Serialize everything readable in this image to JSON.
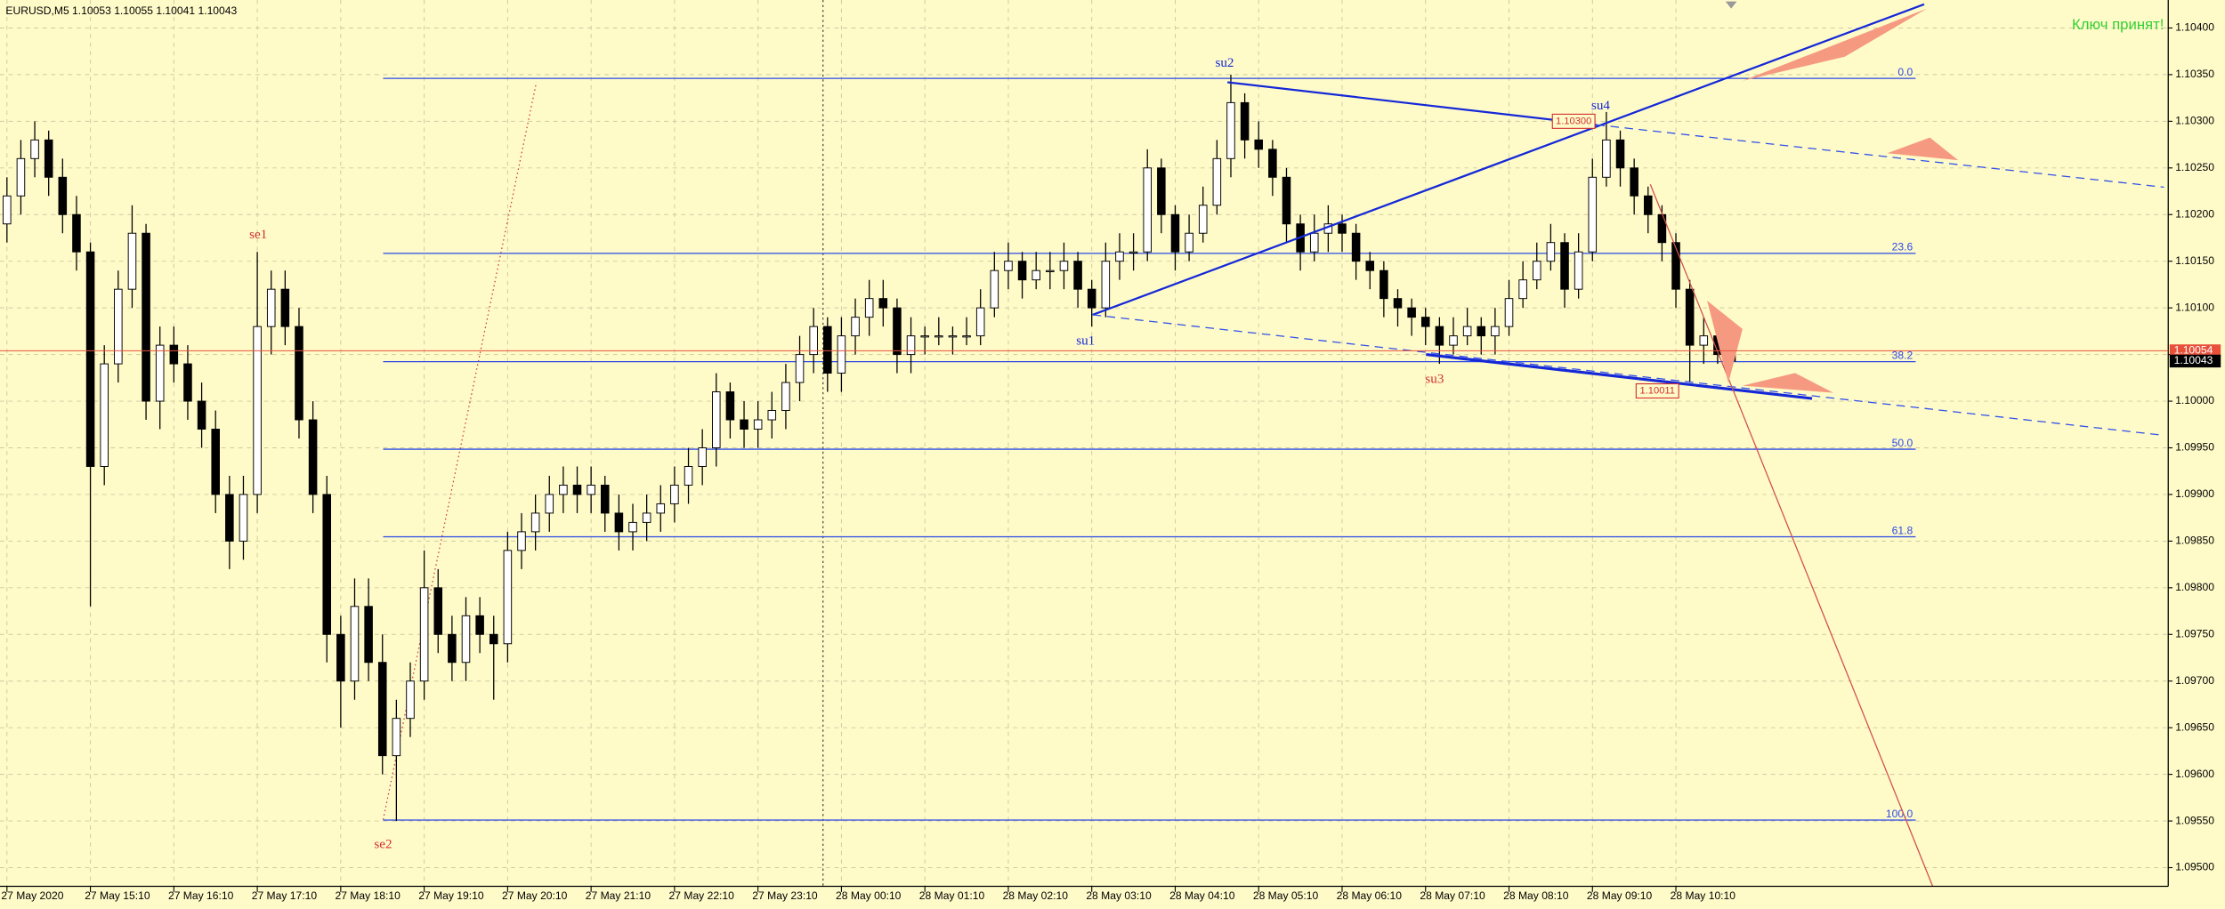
{
  "chart_data": {
    "type": "candlestick",
    "title": "EURUSD,M5  1.10053 1.10055 1.10041 1.10043",
    "status": "Ключ принят!",
    "xlim": [
      -0.5,
      155.4
    ],
    "ylim": [
      1.0948,
      1.1043
    ],
    "grid": true,
    "up_color": "#ffffff",
    "down_color": "#000000",
    "xticks": [
      {
        "value": 0,
        "label": "27 May 2020"
      },
      {
        "value": 6,
        "label": "27 May 15:10"
      },
      {
        "value": 12,
        "label": "27 May 16:10"
      },
      {
        "value": 18,
        "label": "27 May 17:10"
      },
      {
        "value": 24,
        "label": "27 May 18:10"
      },
      {
        "value": 30,
        "label": "27 May 19:10"
      },
      {
        "value": 36,
        "label": "27 May 20:10"
      },
      {
        "value": 42,
        "label": "27 May 21:10"
      },
      {
        "value": 48,
        "label": "27 May 22:10"
      },
      {
        "value": 54,
        "label": "27 May 23:10"
      },
      {
        "value": 60,
        "label": "28 May 00:10"
      },
      {
        "value": 66,
        "label": "28 May 01:10"
      },
      {
        "value": 72,
        "label": "28 May 02:10"
      },
      {
        "value": 78,
        "label": "28 May 03:10"
      },
      {
        "value": 84,
        "label": "28 May 04:10"
      },
      {
        "value": 90,
        "label": "28 May 05:10"
      },
      {
        "value": 96,
        "label": "28 May 06:10"
      },
      {
        "value": 102,
        "label": "28 May 07:10"
      },
      {
        "value": 108,
        "label": "28 May 08:10"
      },
      {
        "value": 114,
        "label": "28 May 09:10"
      },
      {
        "value": 120,
        "label": "28 May 10:10"
      }
    ],
    "yticks": [
      {
        "value": 1.104,
        "label": "1.10400"
      },
      {
        "value": 1.1035,
        "label": "1.10350"
      },
      {
        "value": 1.103,
        "label": "1.10300"
      },
      {
        "value": 1.1025,
        "label": "1.10250"
      },
      {
        "value": 1.102,
        "label": "1.10200"
      },
      {
        "value": 1.1015,
        "label": "1.10150"
      },
      {
        "value": 1.101,
        "label": "1.10100"
      },
      {
        "value": 1.1005,
        "label": "1.10050"
      },
      {
        "value": 1.1,
        "label": "1.10000"
      },
      {
        "value": 1.0995,
        "label": "1.09950"
      },
      {
        "value": 1.099,
        "label": "1.09900"
      },
      {
        "value": 1.0985,
        "label": "1.09850"
      },
      {
        "value": 1.098,
        "label": "1.09800"
      },
      {
        "value": 1.0975,
        "label": "1.09750"
      },
      {
        "value": 1.097,
        "label": "1.09700"
      },
      {
        "value": 1.0965,
        "label": "1.09650"
      },
      {
        "value": 1.096,
        "label": "1.09600"
      },
      {
        "value": 1.0955,
        "label": "1.09550"
      },
      {
        "value": 1.095,
        "label": "1.09500"
      }
    ],
    "ohlc": [
      [
        1.1019,
        1.1024,
        1.1017,
        1.1022
      ],
      [
        1.1022,
        1.1028,
        1.102,
        1.1026
      ],
      [
        1.1026,
        1.103,
        1.1024,
        1.1028
      ],
      [
        1.1028,
        1.1029,
        1.1022,
        1.1024
      ],
      [
        1.1024,
        1.1026,
        1.1018,
        1.102
      ],
      [
        1.102,
        1.1022,
        1.1014,
        1.1016
      ],
      [
        1.1016,
        1.1017,
        1.0978,
        1.0993
      ],
      [
        1.0993,
        1.1006,
        1.0991,
        1.1004
      ],
      [
        1.1004,
        1.1014,
        1.1002,
        1.1012
      ],
      [
        1.1012,
        1.1021,
        1.101,
        1.1018
      ],
      [
        1.1018,
        1.1019,
        1.0998,
        1.1
      ],
      [
        1.1,
        1.1008,
        1.0997,
        1.1006
      ],
      [
        1.1006,
        1.1008,
        1.1002,
        1.1004
      ],
      [
        1.1004,
        1.1006,
        1.0998,
        1.1
      ],
      [
        1.1,
        1.1002,
        1.0995,
        1.0997
      ],
      [
        1.0997,
        1.0999,
        1.0988,
        1.099
      ],
      [
        1.099,
        1.0992,
        1.0982,
        1.0985
      ],
      [
        1.0985,
        1.0992,
        1.0983,
        1.099
      ],
      [
        1.099,
        1.1016,
        1.0988,
        1.1008
      ],
      [
        1.1008,
        1.1014,
        1.1005,
        1.1012
      ],
      [
        1.1012,
        1.1014,
        1.1006,
        1.1008
      ],
      [
        1.1008,
        1.101,
        1.0996,
        1.0998
      ],
      [
        1.0998,
        1.1,
        1.0988,
        1.099
      ],
      [
        1.099,
        1.0992,
        1.0972,
        1.0975
      ],
      [
        1.0975,
        1.0977,
        1.0965,
        1.097
      ],
      [
        1.097,
        1.0981,
        1.0968,
        1.0978
      ],
      [
        1.0978,
        1.0981,
        1.097,
        1.0972
      ],
      [
        1.0972,
        1.0975,
        1.096,
        1.0962
      ],
      [
        1.0962,
        1.0968,
        1.0955,
        1.0966
      ],
      [
        1.0966,
        1.0972,
        1.0964,
        1.097
      ],
      [
        1.097,
        1.0984,
        1.0968,
        1.098
      ],
      [
        1.098,
        1.0982,
        1.0973,
        1.0975
      ],
      [
        1.0975,
        1.0977,
        1.097,
        1.0972
      ],
      [
        1.0972,
        1.0979,
        1.097,
        1.0977
      ],
      [
        1.0977,
        1.0979,
        1.0973,
        1.0975
      ],
      [
        1.0975,
        1.0977,
        1.0968,
        1.0974
      ],
      [
        1.0974,
        1.0986,
        1.0972,
        1.0984
      ],
      [
        1.0984,
        1.0988,
        1.0982,
        1.0986
      ],
      [
        1.0986,
        1.099,
        1.0984,
        1.0988
      ],
      [
        1.0988,
        1.0992,
        1.0986,
        1.099
      ],
      [
        1.099,
        1.0993,
        1.0988,
        1.0991
      ],
      [
        1.0991,
        1.0993,
        1.0988,
        1.099
      ],
      [
        1.099,
        1.0993,
        1.0988,
        1.0991
      ],
      [
        1.0991,
        1.0992,
        1.0986,
        1.0988
      ],
      [
        1.0988,
        1.099,
        1.0984,
        1.0986
      ],
      [
        1.0986,
        1.0989,
        1.0984,
        1.0987
      ],
      [
        1.0987,
        1.099,
        1.0985,
        1.0988
      ],
      [
        1.0988,
        1.0991,
        1.0986,
        1.0989
      ],
      [
        1.0989,
        1.0993,
        1.0987,
        1.0991
      ],
      [
        1.0991,
        1.0995,
        1.0989,
        1.0993
      ],
      [
        1.0993,
        1.0997,
        1.0991,
        1.0995
      ],
      [
        1.0995,
        1.1003,
        1.0993,
        1.1001
      ],
      [
        1.1001,
        1.1002,
        1.0996,
        1.0998
      ],
      [
        1.0998,
        1.1,
        1.0995,
        1.0997
      ],
      [
        1.0997,
        1.1,
        1.0995,
        1.0998
      ],
      [
        1.0998,
        1.1001,
        1.0996,
        1.0999
      ],
      [
        1.0999,
        1.1004,
        1.0997,
        1.1002
      ],
      [
        1.1002,
        1.1007,
        1.1,
        1.1005
      ],
      [
        1.1005,
        1.101,
        1.1003,
        1.1008
      ],
      [
        1.1008,
        1.1009,
        1.1001,
        1.1003
      ],
      [
        1.1003,
        1.1009,
        1.1001,
        1.1007
      ],
      [
        1.1007,
        1.1011,
        1.1005,
        1.1009
      ],
      [
        1.1009,
        1.1013,
        1.1007,
        1.1011
      ],
      [
        1.1011,
        1.1013,
        1.1008,
        1.101
      ],
      [
        1.101,
        1.1011,
        1.1003,
        1.1005
      ],
      [
        1.1005,
        1.1009,
        1.1003,
        1.1007
      ],
      [
        1.1007,
        1.1008,
        1.1005,
        1.1007
      ],
      [
        1.1007,
        1.1009,
        1.1006,
        1.1007
      ],
      [
        1.1007,
        1.1008,
        1.1005,
        1.1007
      ],
      [
        1.1007,
        1.1009,
        1.1006,
        1.1007
      ],
      [
        1.1007,
        1.1012,
        1.1006,
        1.101
      ],
      [
        1.101,
        1.1016,
        1.1009,
        1.1014
      ],
      [
        1.1014,
        1.1017,
        1.1012,
        1.1015
      ],
      [
        1.1015,
        1.1016,
        1.1011,
        1.1013
      ],
      [
        1.1013,
        1.1016,
        1.1012,
        1.1014
      ],
      [
        1.1014,
        1.1016,
        1.1012,
        1.1014
      ],
      [
        1.1014,
        1.1017,
        1.1012,
        1.1015
      ],
      [
        1.1015,
        1.1016,
        1.101,
        1.1012
      ],
      [
        1.1012,
        1.1013,
        1.1008,
        1.101
      ],
      [
        1.101,
        1.1017,
        1.1009,
        1.1015
      ],
      [
        1.1015,
        1.1018,
        1.1013,
        1.1016
      ],
      [
        1.1016,
        1.1018,
        1.1014,
        1.1016
      ],
      [
        1.1016,
        1.1027,
        1.1015,
        1.1025
      ],
      [
        1.1025,
        1.1026,
        1.1018,
        1.102
      ],
      [
        1.102,
        1.1021,
        1.1014,
        1.1016
      ],
      [
        1.1016,
        1.102,
        1.1015,
        1.1018
      ],
      [
        1.1018,
        1.1023,
        1.1017,
        1.1021
      ],
      [
        1.1021,
        1.1028,
        1.102,
        1.1026
      ],
      [
        1.1026,
        1.1035,
        1.1024,
        1.1032
      ],
      [
        1.1032,
        1.1033,
        1.1026,
        1.1028
      ],
      [
        1.1028,
        1.103,
        1.1025,
        1.1027
      ],
      [
        1.1027,
        1.1028,
        1.1022,
        1.1024
      ],
      [
        1.1024,
        1.1025,
        1.1017,
        1.1019
      ],
      [
        1.1019,
        1.102,
        1.1014,
        1.1016
      ],
      [
        1.1016,
        1.102,
        1.1015,
        1.1018
      ],
      [
        1.1018,
        1.1021,
        1.1016,
        1.1019
      ],
      [
        1.1019,
        1.102,
        1.1016,
        1.1018
      ],
      [
        1.1018,
        1.1019,
        1.1013,
        1.1015
      ],
      [
        1.1015,
        1.1016,
        1.1012,
        1.1014
      ],
      [
        1.1014,
        1.1015,
        1.1009,
        1.1011
      ],
      [
        1.1011,
        1.1012,
        1.1008,
        1.101
      ],
      [
        1.101,
        1.1011,
        1.1007,
        1.1009
      ],
      [
        1.1009,
        1.101,
        1.1006,
        1.1008
      ],
      [
        1.1008,
        1.1009,
        1.1004,
        1.1006
      ],
      [
        1.1006,
        1.1009,
        1.1005,
        1.1007
      ],
      [
        1.1007,
        1.101,
        1.1006,
        1.1008
      ],
      [
        1.1008,
        1.1009,
        1.1005,
        1.1007
      ],
      [
        1.1007,
        1.101,
        1.1005,
        1.1008
      ],
      [
        1.1008,
        1.1013,
        1.1007,
        1.1011
      ],
      [
        1.1011,
        1.1015,
        1.101,
        1.1013
      ],
      [
        1.1013,
        1.1017,
        1.1012,
        1.1015
      ],
      [
        1.1015,
        1.1019,
        1.1014,
        1.1017
      ],
      [
        1.1017,
        1.1018,
        1.101,
        1.1012
      ],
      [
        1.1012,
        1.1018,
        1.1011,
        1.1016
      ],
      [
        1.1016,
        1.1026,
        1.1015,
        1.1024
      ],
      [
        1.1024,
        1.1031,
        1.1023,
        1.1028
      ],
      [
        1.1028,
        1.1029,
        1.1023,
        1.1025
      ],
      [
        1.1025,
        1.1026,
        1.102,
        1.1022
      ],
      [
        1.1022,
        1.1023,
        1.1018,
        1.102
      ],
      [
        1.102,
        1.1021,
        1.1015,
        1.1017
      ],
      [
        1.1017,
        1.1018,
        1.101,
        1.1012
      ],
      [
        1.1012,
        1.1013,
        1.1002,
        1.1006
      ],
      [
        1.1006,
        1.1009,
        1.1004,
        1.1007
      ],
      [
        1.1007,
        1.1008,
        1.1004,
        1.1005
      ],
      [
        1.10053,
        1.10055,
        1.10041,
        1.10043
      ]
    ],
    "fibonacci": {
      "high": 1.10346,
      "low": 1.09551,
      "color": "#2a48e8",
      "levels": [
        {
          "value": 0,
          "label": "0.0"
        },
        23.6,
        38.2,
        {
          "value": 50,
          "label": "50.0"
        },
        61.8,
        {
          "value": 100,
          "label": "100.0"
        }
      ]
    },
    "price_labels": [
      {
        "value": 1.10054,
        "label": "1.10054",
        "color": "#e8503a"
      },
      {
        "value": 1.10043,
        "label": "1.10043",
        "color": "#000000"
      }
    ],
    "marked_prices": [
      {
        "value": 1.103,
        "label": "1.10300"
      },
      {
        "value": 1.10011,
        "label": "1.10011"
      }
    ],
    "annotations": [
      "se1",
      "se2",
      "su1",
      "su2",
      "su3",
      "su4"
    ]
  }
}
